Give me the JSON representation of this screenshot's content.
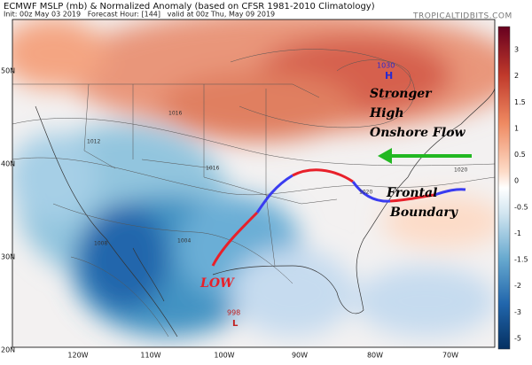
{
  "header": {
    "title": "ECMWF MSLP (mb) & Normalized Anomaly (based on CFSR 1981-2010 Climatology)",
    "subtitle": "Init: 00z May 03 2019   Forecast Hour: [144]   valid at 00z Thu, May 09 2019",
    "credit": "TROPICALTIDBITS.COM"
  },
  "map": {
    "lat_labels": [
      "50N",
      "40N",
      "30N",
      "20N"
    ],
    "lon_labels": [
      "120W",
      "110W",
      "100W",
      "90W",
      "80W",
      "70W"
    ],
    "isobar_labels": [
      "1016",
      "1016",
      "1012",
      "1020",
      "1020",
      "1008",
      "1004"
    ]
  },
  "colorbar": {
    "labels": [
      "3",
      "2",
      "1.5",
      "1",
      "0.5",
      "0",
      "-0.5",
      "-1",
      "-1.5",
      "-2",
      "-3",
      "-5"
    ]
  },
  "annotations": {
    "high_pressure": "1030",
    "high_marker": "H",
    "low_pressure": "998",
    "low_marker": "L",
    "high_note": [
      "Stronger",
      "High",
      "Onshore Flow"
    ],
    "front_note": [
      "Frontal",
      "Boundary"
    ],
    "low_note": "LOW"
  }
}
